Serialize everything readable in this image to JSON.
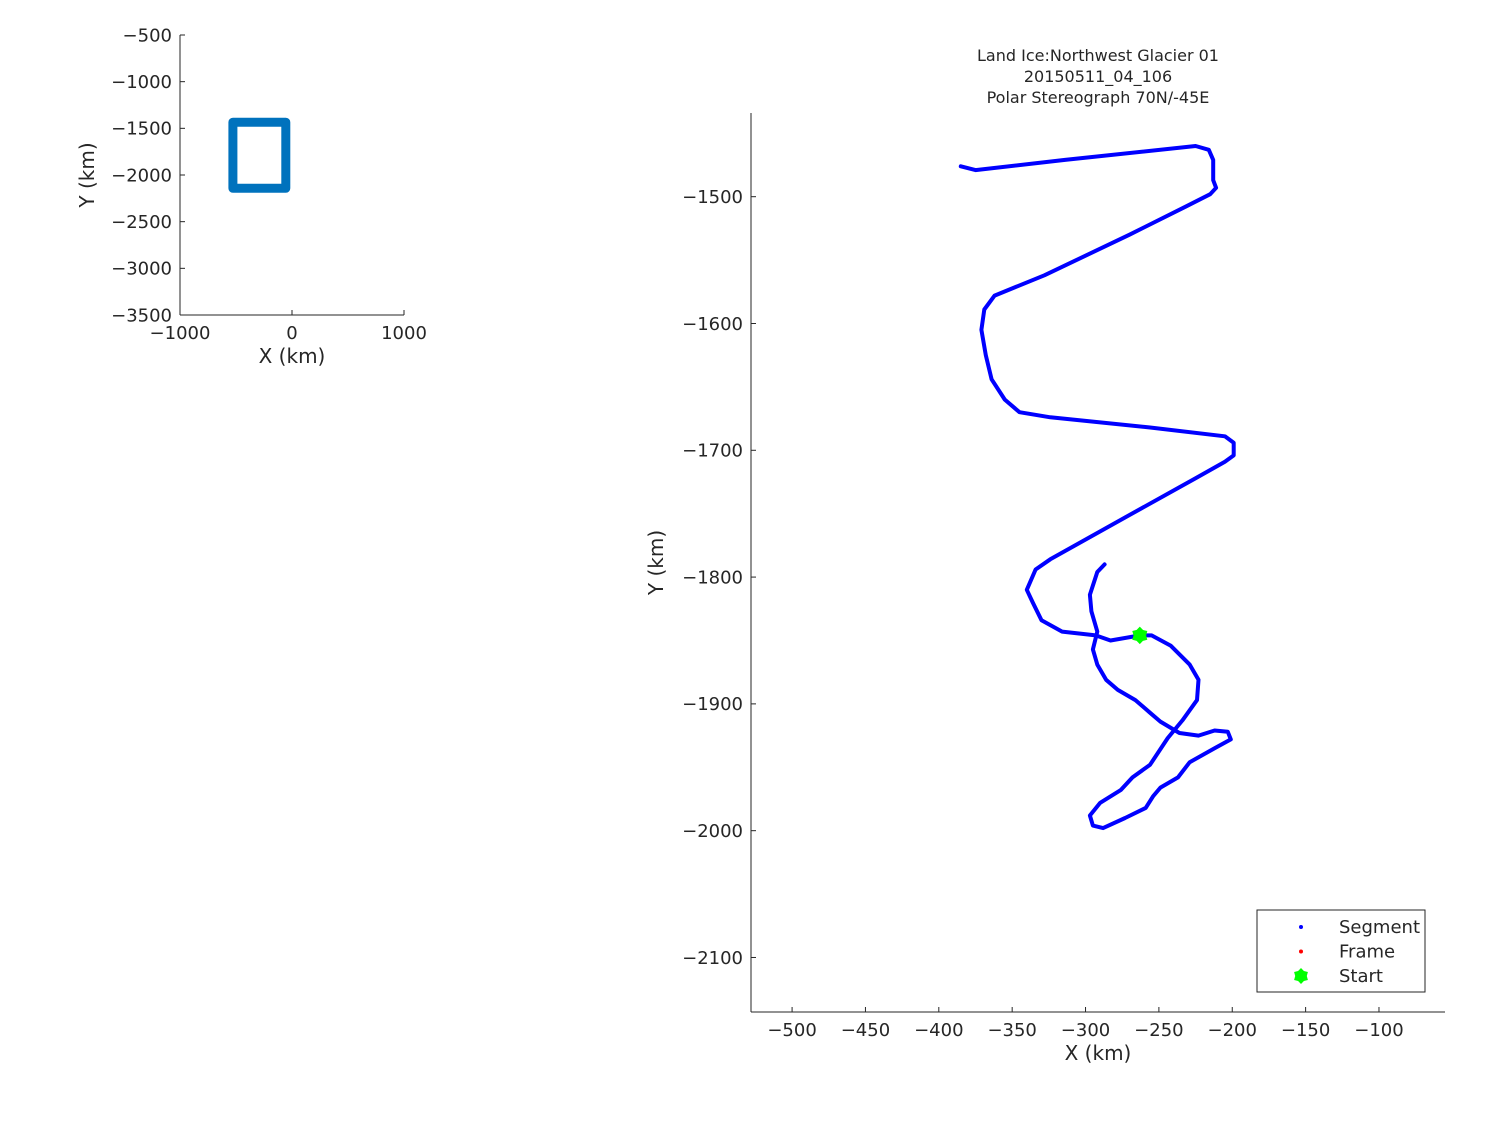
{
  "chart_data": [
    {
      "type": "line",
      "xlabel": "X (km)",
      "ylabel": "Y (km)",
      "xlim": [
        -1000,
        1000
      ],
      "ylim": [
        -3500,
        -500
      ],
      "xticks": [
        -1000,
        0,
        1000
      ],
      "yticks": [
        -500,
        -1000,
        -1500,
        -2000,
        -2500,
        -3000,
        -3500
      ],
      "grid": false,
      "series": [
        {
          "color": "#0072bd",
          "x": [
            -528,
            -55,
            -55,
            -528,
            -528
          ],
          "y": [
            -1434,
            -1434,
            -2143,
            -2143,
            -1434
          ]
        }
      ]
    },
    {
      "type": "line",
      "title": [
        "Land Ice:Northwest Glacier 01",
        "20150511_04_106",
        "Polar Stereograph 70N/-45E"
      ],
      "xlabel": "X (km)",
      "ylabel": "Y (km)",
      "xlim": [
        -528,
        -55
      ],
      "ylim": [
        -2143,
        -1434
      ],
      "xticks": [
        -500,
        -450,
        -400,
        -350,
        -300,
        -250,
        -200,
        -150,
        -100
      ],
      "yticks": [
        -1500,
        -1600,
        -1700,
        -1800,
        -1900,
        -2000,
        -2100
      ],
      "grid": false,
      "legend": {
        "placement": "bottom-right",
        "entries": [
          {
            "label": "Segment",
            "color": "#0000ff",
            "marker": "dot"
          },
          {
            "label": "Frame",
            "color": "#ff0000",
            "marker": "dot"
          },
          {
            "label": "Start",
            "color": "#00ff00",
            "marker": "hexagram"
          }
        ]
      },
      "series": [
        {
          "name": "Segment",
          "color": "#0000ff",
          "x": [
            -385,
            -375,
            -314,
            -225,
            -216,
            -213,
            -213,
            -211,
            -215,
            -232,
            -270,
            -328,
            -362,
            -369,
            -371,
            -368,
            -364,
            -355,
            -345,
            -324,
            -256,
            -205,
            -199,
            -199,
            -205,
            -225,
            -270,
            -324,
            -334,
            -340,
            -336,
            -330,
            -316,
            -293,
            -283,
            -263,
            -255,
            -242,
            -229,
            -223,
            -224,
            -234,
            -244,
            -256,
            -268,
            -276,
            -290,
            -297,
            -295,
            -288,
            -273,
            -259,
            -254,
            -249,
            -237,
            -229,
            -212,
            -201,
            -203,
            -212,
            -223,
            -236,
            -249,
            -256,
            -266,
            -278,
            -286,
            -292,
            -295,
            -292,
            -296,
            -297,
            -292,
            -287
          ],
          "y": [
            -1476,
            -1479,
            -1471,
            -1460,
            -1463,
            -1471,
            -1487,
            -1493,
            -1498,
            -1508,
            -1530,
            -1562,
            -1578,
            -1589,
            -1605,
            -1625,
            -1644,
            -1660,
            -1670,
            -1674,
            -1682,
            -1689,
            -1694,
            -1704,
            -1709,
            -1722,
            -1751,
            -1786,
            -1794,
            -1810,
            -1820,
            -1834,
            -1843,
            -1846,
            -1850,
            -1846,
            -1846,
            -1854,
            -1869,
            -1881,
            -1897,
            -1913,
            -1927,
            -1948,
            -1958,
            -1968,
            -1978,
            -1988,
            -1996,
            -1998,
            -1990,
            -1982,
            -1973,
            -1966,
            -1958,
            -1946,
            -1935,
            -1928,
            -1922,
            -1921,
            -1925,
            -1923,
            -1914,
            -1907,
            -1897,
            -1889,
            -1881,
            -1869,
            -1857,
            -1843,
            -1827,
            -1814,
            -1796,
            -1790
          ]
        },
        {
          "name": "Start",
          "color": "#00ff00",
          "x": [
            -263
          ],
          "y": [
            -1846
          ]
        }
      ]
    }
  ]
}
